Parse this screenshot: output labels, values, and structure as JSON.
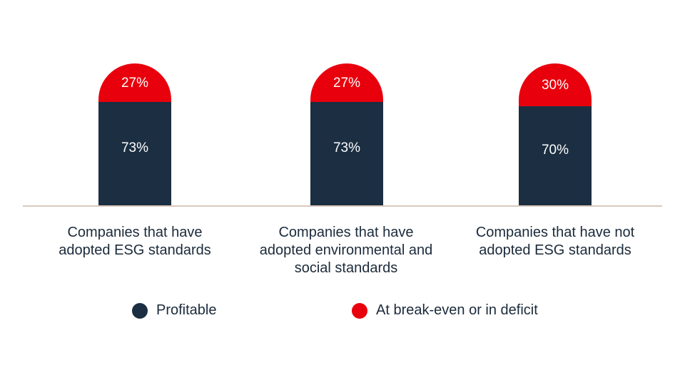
{
  "chart_data": {
    "type": "bar",
    "stacked": true,
    "categories": [
      "Companies that have adopted ESG standards",
      "Companies that have adopted environmental and social standards",
      "Companies that have not adopted ESG standards"
    ],
    "series": [
      {
        "name": "Profitable",
        "values": [
          73,
          73,
          70
        ],
        "labels": [
          "73%",
          "73%",
          "70%"
        ],
        "color": "#1b2e42"
      },
      {
        "name": "At break-even or in deficit",
        "values": [
          27,
          27,
          30
        ],
        "labels": [
          "27%",
          "27%",
          "30%"
        ],
        "color": "#e8000d"
      }
    ],
    "ylim": [
      0,
      100
    ],
    "grid": false,
    "legend_position": "bottom",
    "axis_color": "#d9c8bf"
  }
}
